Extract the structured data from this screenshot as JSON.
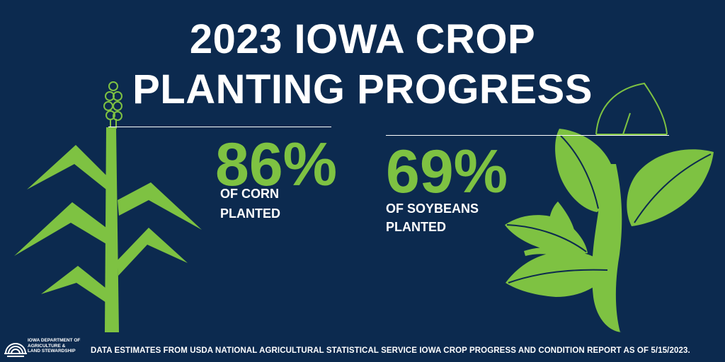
{
  "title": {
    "line1": "2023 IOWA CROP",
    "line2": "PLANTING PROGRESS"
  },
  "stats": {
    "corn": {
      "percent": "86%",
      "label_line1": "OF CORN",
      "label_line2": "PLANTED"
    },
    "soybeans": {
      "percent": "69%",
      "label_line1": "OF SOYBEANS",
      "label_line2": "PLANTED"
    }
  },
  "footer": "DATA ESTIMATES FROM USDA NATIONAL AGRICULTURAL STATISTICAL SERVICE IOWA CROP PROGRESS AND CONDITION REPORT AS OF 5/15/2023.",
  "logo": {
    "line1": "IOWA DEPARTMENT OF",
    "line2": "AGRICULTURE &",
    "line3": "LAND STEWARDSHIP"
  },
  "colors": {
    "background": "#0c2a4f",
    "accent_green": "#7ec242",
    "text": "#ffffff"
  },
  "icons": {
    "corn": "corn-plant-icon",
    "soybean": "soybean-plant-icon",
    "logo": "department-logo-icon"
  }
}
